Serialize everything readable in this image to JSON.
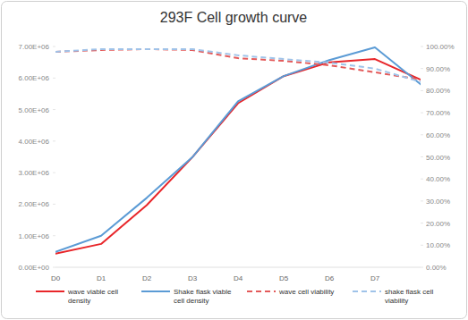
{
  "chart_data": {
    "type": "line",
    "title": "293F Cell growth curve",
    "categories": [
      "D0",
      "D1",
      "D2",
      "D3",
      "D4",
      "D5",
      "D6",
      "D7",
      null
    ],
    "ylim": [
      0,
      7000000
    ],
    "yticks": [
      {
        "value": 0,
        "label": "0.00E+00"
      },
      {
        "value": 1000000,
        "label": "1.00E+06"
      },
      {
        "value": 2000000,
        "label": "2.00E+06"
      },
      {
        "value": 3000000,
        "label": "3.00E+06"
      },
      {
        "value": 4000000,
        "label": "4.00E+06"
      },
      {
        "value": 5000000,
        "label": "5.00E+06"
      },
      {
        "value": 6000000,
        "label": "6.00E+06"
      },
      {
        "value": 7000000,
        "label": "7.00E+06"
      }
    ],
    "y2lim": [
      0,
      100
    ],
    "y2ticks": [
      {
        "value": 0,
        "label": "0.00%"
      },
      {
        "value": 10,
        "label": "10.00%"
      },
      {
        "value": 20,
        "label": "20.00%"
      },
      {
        "value": 30,
        "label": "30.00%"
      },
      {
        "value": 40,
        "label": "40.00%"
      },
      {
        "value": 50,
        "label": "50.00%"
      },
      {
        "value": 60,
        "label": "60.00%"
      },
      {
        "value": 70,
        "label": "70.00%"
      },
      {
        "value": 80,
        "label": "80.00%"
      },
      {
        "value": 90,
        "label": "90.00%"
      },
      {
        "value": 100,
        "label": "100.00%"
      }
    ],
    "grid": false,
    "legend": "bottom",
    "series": [
      {
        "name": "wave viable cell density",
        "color": "#e8262a",
        "line_style": "solid",
        "values": [
          430000,
          740000,
          1970000,
          3490000,
          5200000,
          6060000,
          6500000,
          6600000,
          5950000
        ]
      },
      {
        "name": "Shake flask viable cell density",
        "color": "#5b9bd5",
        "line_style": "solid",
        "values": [
          490000,
          1000000,
          2200000,
          3490000,
          5260000,
          6060000,
          6570000,
          6970000,
          5800000
        ]
      },
      {
        "name": "wave cell viability",
        "color": "#e35a5a",
        "line_style": "dashed",
        "axis": "y2",
        "values": [
          97.6,
          98.4,
          98.8,
          98.4,
          94.7,
          93.5,
          91.5,
          88.3,
          85.0
        ]
      },
      {
        "name": "shake flask cell viability",
        "color": "#9fc3e9",
        "line_style": "dashed",
        "axis": "y2",
        "values": [
          97.6,
          98.8,
          98.8,
          98.8,
          96.0,
          94.3,
          92.7,
          90.0,
          84.0
        ]
      }
    ]
  }
}
